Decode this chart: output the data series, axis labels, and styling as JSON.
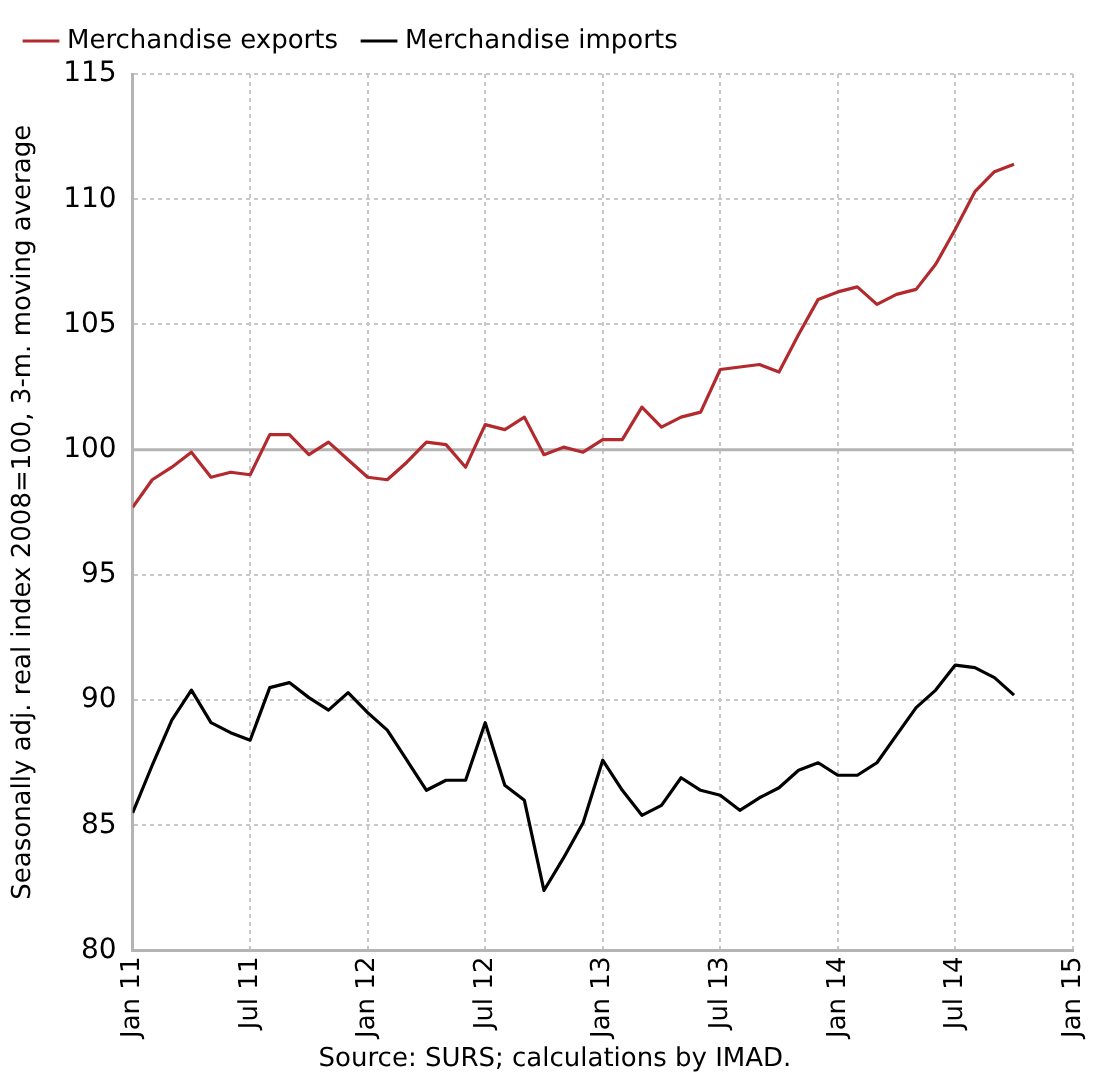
{
  "chart_data": {
    "type": "line",
    "ylabel": "Seasonally adj. real index 2008=100, 3-m. moving average",
    "x": [
      "2011-01",
      "2011-02",
      "2011-03",
      "2011-04",
      "2011-05",
      "2011-06",
      "2011-07",
      "2011-08",
      "2011-09",
      "2011-10",
      "2011-11",
      "2011-12",
      "2012-01",
      "2012-02",
      "2012-03",
      "2012-04",
      "2012-05",
      "2012-06",
      "2012-07",
      "2012-08",
      "2012-09",
      "2012-10",
      "2012-11",
      "2012-12",
      "2013-01",
      "2013-02",
      "2013-03",
      "2013-04",
      "2013-05",
      "2013-06",
      "2013-07",
      "2013-08",
      "2013-09",
      "2013-10",
      "2013-11",
      "2013-12",
      "2014-01",
      "2014-02",
      "2014-03",
      "2014-04",
      "2014-05",
      "2014-06",
      "2014-07",
      "2014-08",
      "2014-09",
      "2014-10"
    ],
    "series": [
      {
        "name": "Merchandise exports",
        "color": "#b22a2e",
        "values": [
          97.7,
          98.8,
          99.3,
          99.9,
          98.9,
          99.1,
          99.0,
          100.6,
          100.6,
          99.8,
          100.3,
          99.6,
          98.9,
          98.8,
          99.5,
          100.3,
          100.2,
          99.3,
          101.0,
          100.8,
          101.3,
          99.8,
          100.1,
          99.9,
          100.4,
          100.4,
          101.7,
          100.9,
          101.3,
          101.5,
          103.2,
          103.3,
          103.4,
          103.1,
          104.6,
          106.0,
          106.3,
          106.5,
          105.8,
          106.2,
          106.4,
          107.4,
          108.8,
          110.3,
          111.1,
          111.4
        ]
      },
      {
        "name": "Merchandise imports",
        "color": "#000000",
        "values": [
          85.5,
          87.4,
          89.2,
          90.4,
          89.1,
          88.7,
          88.4,
          90.5,
          90.7,
          90.1,
          89.6,
          90.3,
          89.5,
          88.8,
          87.6,
          86.4,
          86.8,
          86.8,
          89.1,
          86.6,
          86.0,
          82.4,
          83.7,
          85.1,
          87.6,
          86.4,
          85.4,
          85.8,
          86.9,
          86.4,
          86.2,
          85.6,
          86.1,
          86.5,
          87.2,
          87.5,
          87.0,
          87.0,
          87.5,
          88.6,
          89.7,
          90.4,
          91.4,
          91.3,
          90.9,
          90.2
        ]
      }
    ],
    "xlim": [
      "2011-01",
      "2015-01"
    ],
    "xticks": [
      {
        "value": "2011-01",
        "label": "Jan 11"
      },
      {
        "value": "2011-07",
        "label": "Jul 11"
      },
      {
        "value": "2012-01",
        "label": "Jan 12"
      },
      {
        "value": "2012-07",
        "label": "Jul 12"
      },
      {
        "value": "2013-01",
        "label": "Jan 13"
      },
      {
        "value": "2013-07",
        "label": "Jul 13"
      },
      {
        "value": "2014-01",
        "label": "Jan 14"
      },
      {
        "value": "2014-07",
        "label": "Jul 14"
      },
      {
        "value": "2015-01",
        "label": "Jan 15"
      }
    ],
    "ylim": [
      80,
      115
    ],
    "yticks": [
      80,
      85,
      90,
      95,
      100,
      105,
      110,
      115
    ],
    "ref_lines": [
      {
        "axis": "y",
        "value": 100,
        "color": "#b4b4b4"
      }
    ],
    "grid": true,
    "legend": "top",
    "marker": "none",
    "line_style": "solid",
    "annotations": [
      "Source: SURS; calculations by IMAD."
    ]
  }
}
